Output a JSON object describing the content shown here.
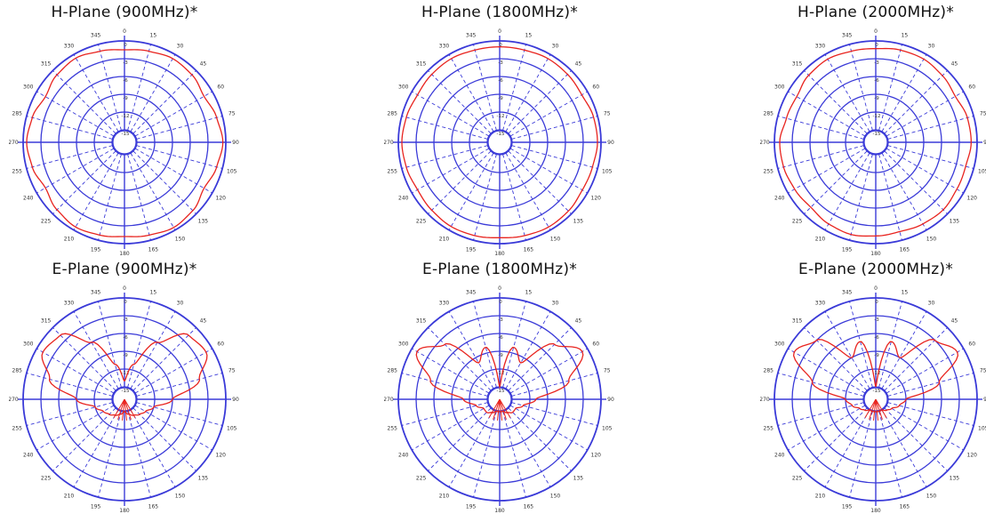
{
  "colors": {
    "grid": "#3a3ad8",
    "trace": "#e8231e",
    "text": "#111111",
    "background": "#ffffff"
  },
  "axis": {
    "angle_labels": [
      "0",
      "15",
      "30",
      "45",
      "60",
      "75",
      "90",
      "105",
      "120",
      "135",
      "150",
      "165",
      "180",
      "195",
      "210",
      "225",
      "240",
      "255",
      "270",
      "285",
      "300",
      "315",
      "330",
      "345"
    ],
    "radial_labels": [
      "0",
      "-3",
      "-6",
      "-9",
      "-12",
      "-15"
    ],
    "radial_range_db": [
      -15,
      0
    ],
    "direction": "clockwise",
    "zero_at": "top"
  },
  "panels": [
    {
      "title": "H-Plane (900MHz)*"
    },
    {
      "title": "H-Plane (1800MHz)*"
    },
    {
      "title": "H-Plane (2000MHz)*"
    },
    {
      "title": "E-Plane (900MHz)*"
    },
    {
      "title": "E-Plane (1800MHz)*"
    },
    {
      "title": "E-Plane (2000MHz)*"
    }
  ],
  "chart_data": [
    {
      "type": "polar",
      "title": "H-Plane (900MHz)*",
      "r_range": [
        -15,
        0
      ],
      "theta_deg": [
        0,
        15,
        30,
        45,
        60,
        75,
        90,
        105,
        120,
        135,
        150,
        165,
        180,
        195,
        210,
        225,
        240,
        255,
        270,
        285,
        300,
        315,
        330,
        345
      ],
      "values_db": [
        -1.5,
        -1.2,
        -0.8,
        -1.0,
        -1.6,
        -1.0,
        -0.5,
        -1.0,
        -1.6,
        -0.8,
        -0.5,
        -0.9,
        -1.2,
        -0.9,
        -0.6,
        -1.0,
        -1.7,
        -1.0,
        -0.6,
        -1.0,
        -1.7,
        -1.0,
        -0.7,
        -1.2
      ]
    },
    {
      "type": "polar",
      "title": "H-Plane (1800MHz)*",
      "r_range": [
        -15,
        0
      ],
      "theta_deg": [
        0,
        15,
        30,
        45,
        60,
        75,
        90,
        105,
        120,
        135,
        150,
        165,
        180,
        195,
        210,
        225,
        240,
        255,
        270,
        285,
        300,
        315,
        330,
        345
      ],
      "values_db": [
        -1.0,
        -1.0,
        -0.8,
        -0.9,
        -1.1,
        -0.7,
        -0.6,
        -0.9,
        -1.0,
        -0.7,
        -0.6,
        -0.8,
        -1.0,
        -0.8,
        -0.7,
        -0.9,
        -1.1,
        -0.8,
        -0.6,
        -0.8,
        -1.1,
        -0.9,
        -0.8,
        -1.0
      ]
    },
    {
      "type": "polar",
      "title": "H-Plane (2000MHz)*",
      "r_range": [
        -15,
        0
      ],
      "theta_deg": [
        0,
        15,
        30,
        45,
        60,
        75,
        90,
        105,
        120,
        135,
        150,
        165,
        180,
        195,
        210,
        225,
        240,
        255,
        270,
        285,
        300,
        315,
        330,
        345
      ],
      "values_db": [
        -1.3,
        -1.0,
        -0.9,
        -1.2,
        -1.6,
        -1.1,
        -1.0,
        -1.4,
        -1.3,
        -1.0,
        -1.2,
        -1.5,
        -1.3,
        -1.0,
        -1.2,
        -1.6,
        -1.3,
        -1.0,
        -0.9,
        -1.5,
        -1.7,
        -1.1,
        -0.9,
        -1.2
      ]
    },
    {
      "type": "polar",
      "title": "E-Plane (900MHz)*",
      "r_range": [
        -15,
        0
      ],
      "theta_deg": [
        0,
        15,
        30,
        45,
        60,
        75,
        90,
        105,
        120,
        135,
        150,
        165,
        180,
        195,
        210,
        225,
        240,
        255,
        270,
        285,
        300,
        315,
        330,
        345
      ],
      "values_db": [
        -14.0,
        -11.0,
        -6.0,
        -1.8,
        -1.2,
        -4.0,
        -9.0,
        -12.0,
        -13.0,
        -13.5,
        -14.0,
        -14.5,
        -15.0,
        -14.5,
        -14.0,
        -13.5,
        -13.0,
        -12.0,
        -9.0,
        -4.0,
        -1.2,
        -1.8,
        -6.0,
        -11.0
      ]
    },
    {
      "type": "polar",
      "title": "E-Plane (1800MHz)*",
      "r_range": [
        -15,
        0
      ],
      "theta_deg": [
        0,
        15,
        30,
        45,
        60,
        75,
        90,
        105,
        120,
        135,
        150,
        165,
        180,
        195,
        210,
        225,
        240,
        255,
        270,
        285,
        300,
        315,
        330,
        345
      ],
      "values_db": [
        -15.0,
        -8.0,
        -10.0,
        -4.0,
        -1.0,
        -5.0,
        -11.0,
        -13.0,
        -14.0,
        -14.0,
        -14.5,
        -15.0,
        -15.0,
        -15.0,
        -14.5,
        -14.0,
        -14.0,
        -13.0,
        -11.0,
        -5.0,
        -1.0,
        -4.0,
        -10.0,
        -8.0
      ]
    },
    {
      "type": "polar",
      "title": "E-Plane (2000MHz)*",
      "r_range": [
        -15,
        0
      ],
      "theta_deg": [
        0,
        15,
        30,
        45,
        60,
        75,
        90,
        105,
        120,
        135,
        150,
        165,
        180,
        195,
        210,
        225,
        240,
        255,
        270,
        285,
        300,
        315,
        330,
        345
      ],
      "values_db": [
        -15.0,
        -7.0,
        -9.0,
        -3.0,
        -1.2,
        -6.0,
        -12.0,
        -13.0,
        -14.0,
        -14.5,
        -15.0,
        -15.0,
        -15.0,
        -15.0,
        -15.0,
        -14.5,
        -14.0,
        -13.0,
        -12.0,
        -6.0,
        -1.2,
        -3.0,
        -9.0,
        -7.0
      ]
    }
  ]
}
